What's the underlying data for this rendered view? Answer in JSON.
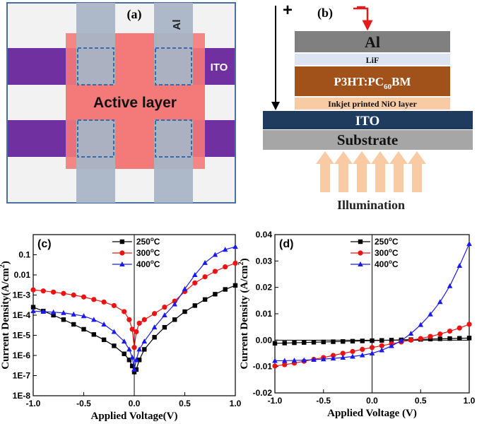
{
  "panel_a": {
    "label": "(a)",
    "al_label": "Al",
    "ito_label": "ITO",
    "active_label": "Active layer"
  },
  "panel_b": {
    "label": "(b)",
    "plus": "+",
    "minus": "−",
    "layers": {
      "al": "Al",
      "lif": "LiF",
      "p3ht": "P3HT:PC",
      "p3ht_sub": "60",
      "p3ht_tail": "BM",
      "nio": "Inkjet printed NiO layer",
      "ito": "ITO",
      "substrate": "Substrate"
    },
    "illumination": "Illumination"
  },
  "colors": {
    "s250": "#000000",
    "s300": "#ee1111",
    "s400": "#1a1aee",
    "active": "#f47a7a",
    "ito": "#7030a0",
    "al_strip": "#a9b4c6",
    "p3ht": "#a0521a",
    "nio": "#f8cba4",
    "ito_layer": "#1f3b5e",
    "substrate": "#a6a6a6",
    "al_layer": "#808080",
    "lif": "#dbe4f0"
  },
  "chart_data": [
    {
      "panel": "(c)",
      "type": "scatter",
      "title": "",
      "xlabel": "Applied Voltage(V)",
      "ylabel": "Current Density(A/cm2)",
      "ylabel_parts": [
        "Current Density(A/cm",
        "2",
        ")"
      ],
      "yscale": "log",
      "xlim": [
        -1.0,
        1.0
      ],
      "ylim": [
        1e-08,
        1
      ],
      "xticks": [
        "-1.0",
        "-0.5",
        "0.0",
        "0.5",
        "1.0"
      ],
      "yticks": [
        "1E-8",
        "1E-7",
        "1E-6",
        "1E-5",
        "1E-4",
        "1E-3",
        "0.01",
        "0.1"
      ],
      "legend_position": "top-center",
      "series": [
        {
          "name": "250°C",
          "name_base": "250",
          "name_unit": "C",
          "marker": "square",
          "x": [
            -1.0,
            -0.9,
            -0.8,
            -0.7,
            -0.6,
            -0.5,
            -0.4,
            -0.3,
            -0.2,
            -0.1,
            -0.05,
            -0.02,
            0.0,
            0.02,
            0.05,
            0.1,
            0.2,
            0.3,
            0.4,
            0.5,
            0.6,
            0.7,
            0.8,
            0.9,
            1.0
          ],
          "y": [
            0.00025,
            0.00016,
            0.0001,
            6e-05,
            3.5e-05,
            2e-05,
            1.1e-05,
            6e-06,
            3e-06,
            1.2e-06,
            6e-07,
            3e-07,
            1.5e-07,
            2e-07,
            6e-07,
            2e-06,
            8e-06,
            2.5e-05,
            6e-05,
            0.00015,
            0.0003,
            0.0006,
            0.0011,
            0.0019,
            0.003
          ]
        },
        {
          "name": "300°C",
          "name_base": "300",
          "name_unit": "C",
          "marker": "circle",
          "x": [
            -1.0,
            -0.9,
            -0.8,
            -0.7,
            -0.6,
            -0.5,
            -0.4,
            -0.3,
            -0.2,
            -0.1,
            -0.05,
            -0.02,
            0.0,
            0.02,
            0.05,
            0.1,
            0.2,
            0.3,
            0.4,
            0.5,
            0.6,
            0.7,
            0.8,
            0.9,
            1.0
          ],
          "y": [
            0.0018,
            0.0016,
            0.0014,
            0.0012,
            0.001,
            0.0008,
            0.0006,
            0.00045,
            0.0003,
            0.00015,
            6e-05,
            2e-05,
            2.5e-06,
            1.5e-05,
            4e-05,
            6e-05,
            0.00012,
            0.00025,
            0.0005,
            0.0015,
            0.004,
            0.008,
            0.015,
            0.025,
            0.038
          ]
        },
        {
          "name": "400°C",
          "name_base": "400",
          "name_unit": "C",
          "marker": "triangle",
          "x": [
            -1.0,
            -0.9,
            -0.8,
            -0.7,
            -0.6,
            -0.5,
            -0.4,
            -0.3,
            -0.2,
            -0.1,
            -0.05,
            -0.02,
            0.0,
            0.02,
            0.05,
            0.1,
            0.2,
            0.3,
            0.4,
            0.5,
            0.6,
            0.7,
            0.8,
            0.9,
            1.0
          ],
          "y": [
            0.00016,
            0.00015,
            0.00014,
            0.00013,
            0.00011,
            9e-05,
            6e-05,
            3.5e-05,
            1.5e-05,
            5e-06,
            2e-06,
            8e-07,
            2e-07,
            6e-07,
            2e-06,
            5e-06,
            2.5e-05,
            0.0001,
            0.00035,
            0.002,
            0.01,
            0.04,
            0.1,
            0.18,
            0.25
          ]
        }
      ]
    },
    {
      "panel": "(d)",
      "type": "scatter",
      "title": "",
      "xlabel": "Applied Voltage (V)",
      "ylabel": "Current Density (A/cm2)",
      "ylabel_parts": [
        "Current Density (A/cm",
        "2",
        ")"
      ],
      "yscale": "linear",
      "xlim": [
        -1.0,
        1.0
      ],
      "ylim": [
        -0.02,
        0.04
      ],
      "xticks": [
        "-1.0",
        "-0.5",
        "0.0",
        "0.5",
        "1.0"
      ],
      "yticks": [
        "-0.02",
        "-0.01",
        "0.00",
        "0.01",
        "0.02",
        "0.03",
        "0.04"
      ],
      "legend_position": "top-center",
      "series": [
        {
          "name": "250°C",
          "name_base": "250",
          "name_unit": "C",
          "marker": "square",
          "x": [
            -1.0,
            -0.9,
            -0.8,
            -0.7,
            -0.6,
            -0.5,
            -0.4,
            -0.3,
            -0.2,
            -0.1,
            0.0,
            0.1,
            0.2,
            0.3,
            0.4,
            0.5,
            0.6,
            0.7,
            0.8,
            0.9,
            1.0
          ],
          "y": [
            -0.0012,
            -0.0011,
            -0.001,
            -0.0009,
            -0.0008,
            -0.0007,
            -0.0006,
            -0.0005,
            -0.0004,
            -0.0003,
            -0.0002,
            -0.0001,
            0.0,
            0.0001,
            0.0002,
            0.0003,
            0.0004,
            0.0005,
            0.0006,
            0.0007,
            0.0008
          ]
        },
        {
          "name": "300°C",
          "name_base": "300",
          "name_unit": "C",
          "marker": "circle",
          "x": [
            -1.0,
            -0.9,
            -0.8,
            -0.7,
            -0.6,
            -0.5,
            -0.4,
            -0.3,
            -0.2,
            -0.1,
            0.0,
            0.1,
            0.2,
            0.3,
            0.4,
            0.5,
            0.6,
            0.7,
            0.8,
            0.9,
            1.0
          ],
          "y": [
            -0.0098,
            -0.0093,
            -0.0087,
            -0.008,
            -0.0073,
            -0.0066,
            -0.0058,
            -0.005,
            -0.0043,
            -0.0035,
            -0.0028,
            -0.0021,
            -0.0014,
            -0.0007,
            0.0,
            0.0006,
            0.0014,
            0.0023,
            0.0034,
            0.0046,
            0.006
          ]
        },
        {
          "name": "400°C",
          "name_base": "400",
          "name_unit": "C",
          "marker": "triangle",
          "x": [
            -1.0,
            -0.9,
            -0.8,
            -0.7,
            -0.6,
            -0.5,
            -0.4,
            -0.3,
            -0.2,
            -0.1,
            0.0,
            0.1,
            0.2,
            0.3,
            0.4,
            0.5,
            0.6,
            0.7,
            0.8,
            0.9,
            1.0
          ],
          "y": [
            -0.0078,
            -0.0078,
            -0.0077,
            -0.0076,
            -0.0074,
            -0.0072,
            -0.0069,
            -0.0066,
            -0.0062,
            -0.0057,
            -0.005,
            -0.0038,
            -0.0022,
            -0.0002,
            0.0025,
            0.0058,
            0.0098,
            0.0145,
            0.0205,
            0.0282,
            0.0365
          ]
        }
      ]
    }
  ]
}
